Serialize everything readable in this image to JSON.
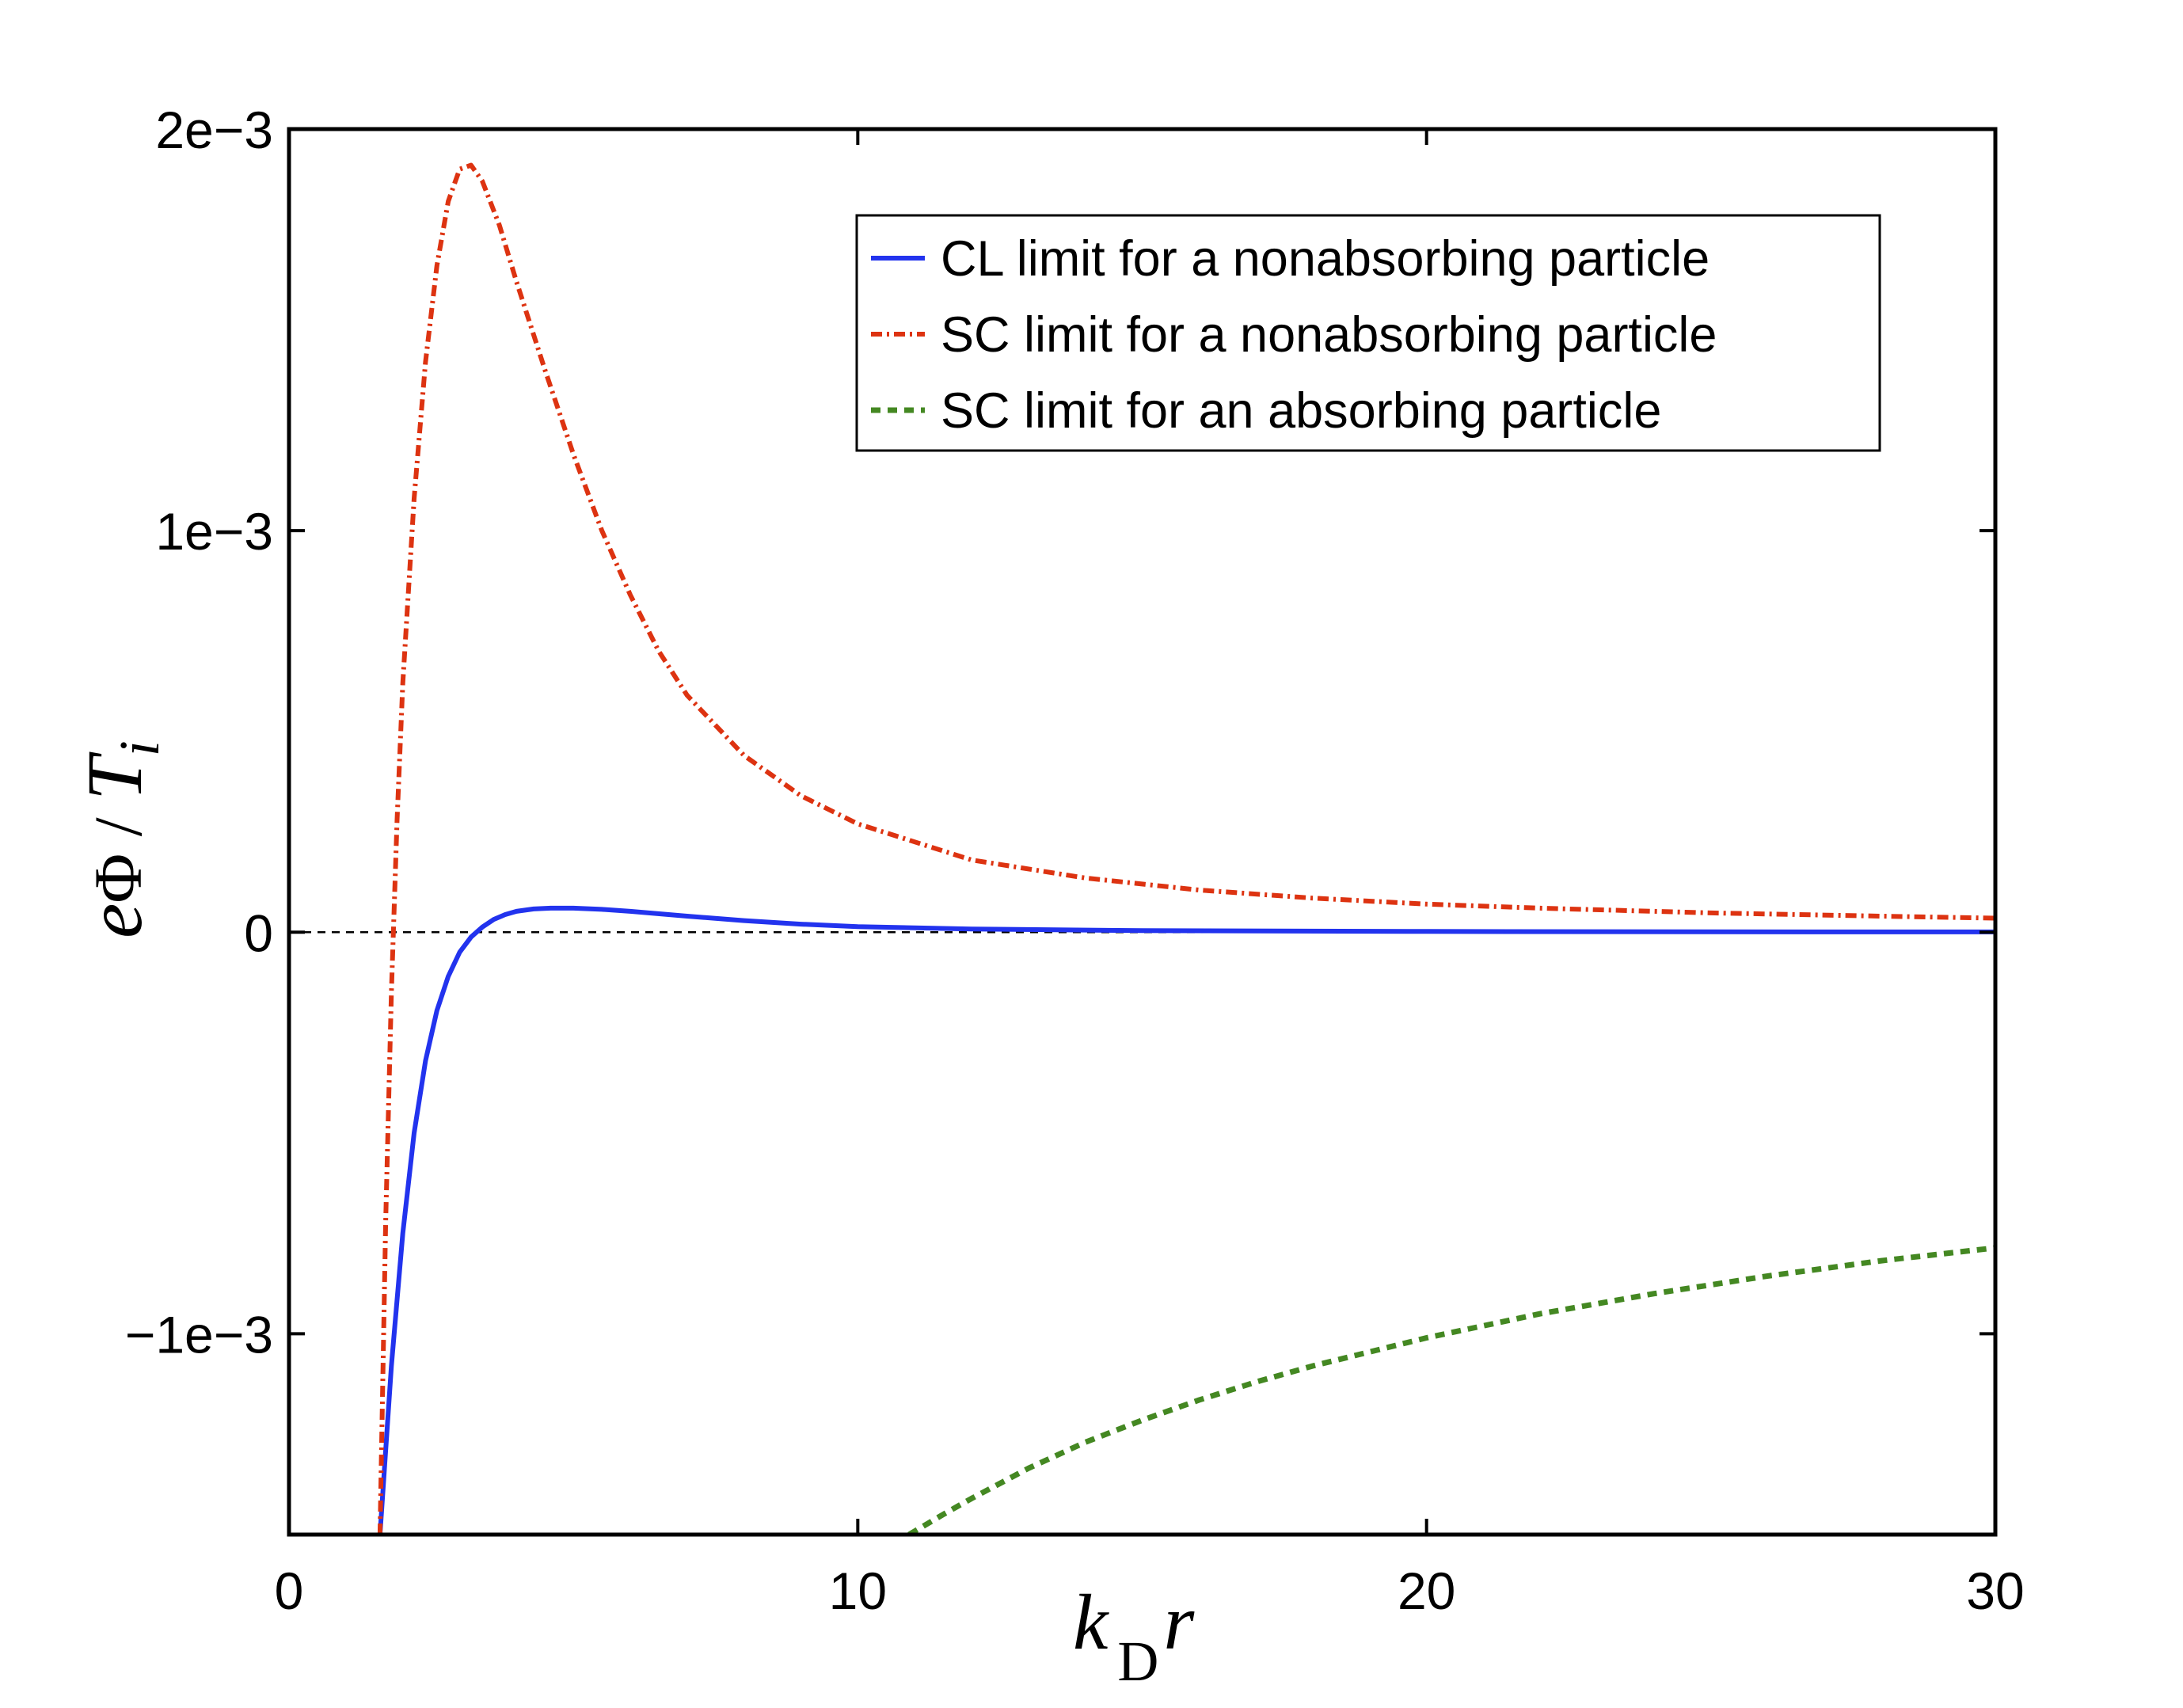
{
  "chart_data": {
    "type": "line",
    "title": "",
    "xlabel": {
      "main": "k",
      "subscript": "D",
      "tail": "r"
    },
    "ylabel": {
      "e": "e",
      "phi": "Φ",
      "slash": " / ",
      "T": "T",
      "subscript": "i"
    },
    "xlim": [
      0,
      30
    ],
    "ylim": [
      -0.0015,
      0.002
    ],
    "x_ticks": [
      0,
      10,
      20,
      30
    ],
    "x_tick_labels": [
      "0",
      "10",
      "20",
      "30"
    ],
    "y_ticks": [
      0.002,
      0.001,
      0,
      -0.001
    ],
    "y_tick_labels": [
      "2e−3",
      "1e−3",
      "0",
      "−1e−3"
    ],
    "reference_line": {
      "y": 0,
      "style": "dashed",
      "color": "#000000"
    },
    "legend_position": "top-right",
    "series": [
      {
        "name": "CL limit for a nonabsorbing particle",
        "color": "#2233ee",
        "style": "solid",
        "x": [
          1.6,
          1.8,
          2.0,
          2.2,
          2.4,
          2.6,
          2.8,
          3.0,
          3.2,
          3.4,
          3.6,
          3.8,
          4.0,
          4.3,
          4.6,
          5.0,
          5.5,
          6.0,
          7.0,
          8.0,
          9.0,
          10.0,
          12.0,
          15.0,
          20.0,
          25.0,
          30.0
        ],
        "values": [
          -0.0015,
          -0.00108,
          -0.00075,
          -0.0005,
          -0.00032,
          -0.000195,
          -0.00011,
          -5e-05,
          -1.2e-05,
          1.3e-05,
          3.2e-05,
          4.4e-05,
          5.2e-05,
          5.8e-05,
          6e-05,
          6e-05,
          5.7e-05,
          5.2e-05,
          4e-05,
          2.9e-05,
          2e-05,
          1.4e-05,
          8e-06,
          4e-06,
          2e-06,
          1e-06,
          8e-07
        ]
      },
      {
        "name": "SC limit for a nonabsorbing particle",
        "color": "#dd3311",
        "style": "dash-dot",
        "x": [
          1.6,
          1.7,
          1.8,
          1.9,
          2.0,
          2.2,
          2.4,
          2.6,
          2.8,
          3.0,
          3.2,
          3.4,
          3.7,
          4.0,
          4.5,
          5.0,
          5.5,
          6.0,
          6.5,
          7.0,
          8.0,
          9.0,
          10.0,
          12.0,
          14.0,
          16.0,
          18.0,
          20.0,
          22.0,
          25.0,
          28.0,
          30.0
        ],
        "values": [
          -0.0015,
          -0.00072,
          -0.00015,
          0.00028,
          0.00062,
          0.00108,
          0.00142,
          0.00166,
          0.00182,
          0.0019,
          0.00191,
          0.00187,
          0.00176,
          0.00162,
          0.0014,
          0.00119,
          0.001,
          0.00084,
          0.0007,
          0.00059,
          0.00044,
          0.00034,
          0.00027,
          0.00018,
          0.000135,
          0.000105,
          8.5e-05,
          7e-05,
          6e-05,
          4.8e-05,
          4e-05,
          3.5e-05
        ]
      },
      {
        "name": "SC limit for an absorbing particle",
        "color": "#448822",
        "style": "dotted",
        "x": [
          10.9,
          11.5,
          12.0,
          13.0,
          14.0,
          15.0,
          16.0,
          17.0,
          18.0,
          19.0,
          20.0,
          21.0,
          22.0,
          23.0,
          24.0,
          25.0,
          26.0,
          27.0,
          28.0,
          29.0,
          30.0
        ],
        "values": [
          -0.0015,
          -0.00145,
          -0.00141,
          -0.001335,
          -0.00127,
          -0.001215,
          -0.001165,
          -0.00112,
          -0.00108,
          -0.001045,
          -0.00101,
          -0.00098,
          -0.00095,
          -0.000925,
          -0.0009,
          -0.000878,
          -0.000856,
          -0.000837,
          -0.000818,
          -0.000802,
          -0.000786
        ]
      }
    ]
  }
}
